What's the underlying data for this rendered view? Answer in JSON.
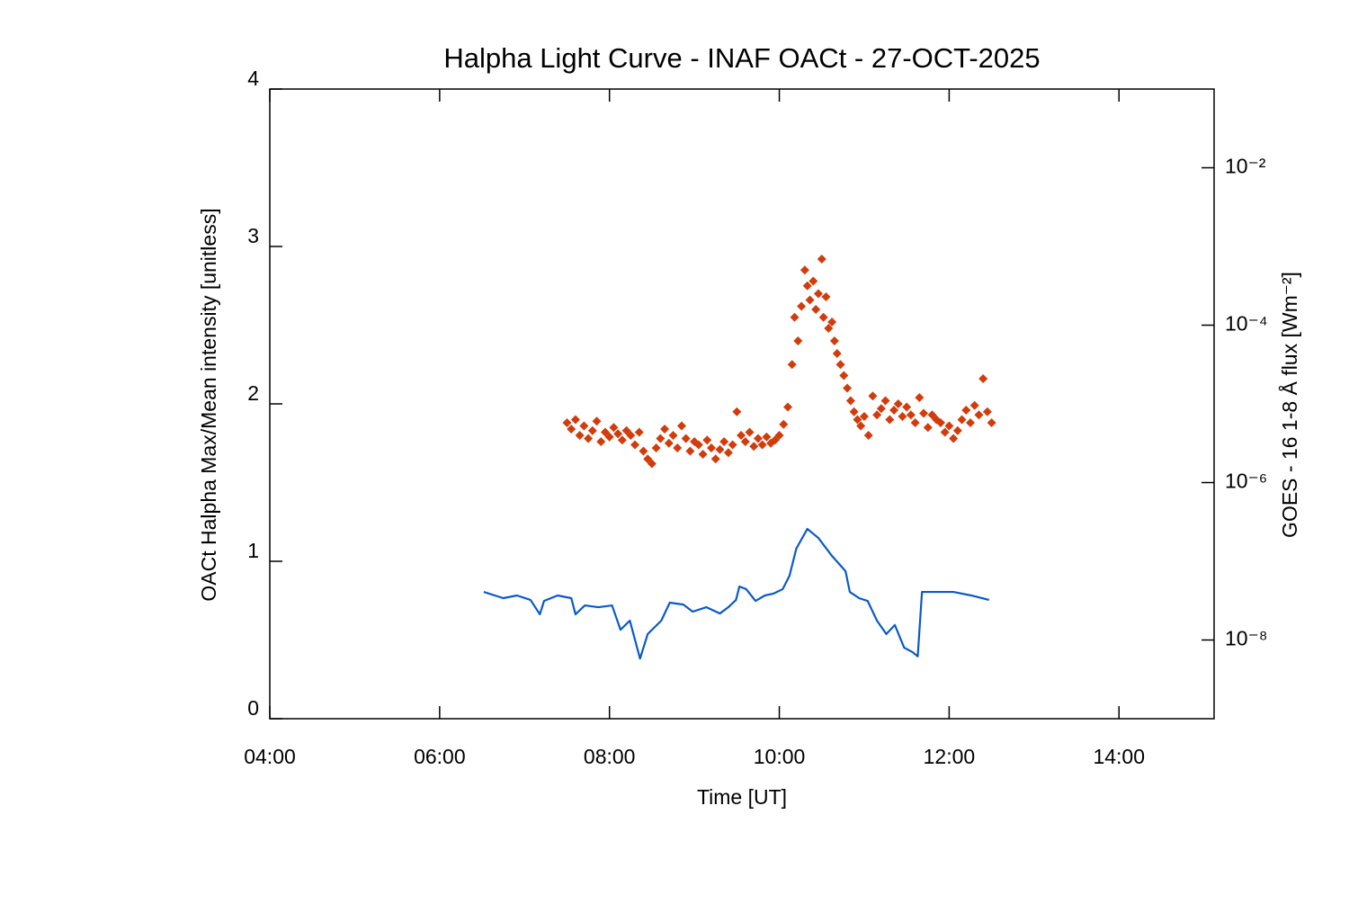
{
  "chart_data": {
    "type": "combo",
    "title": "Halpha Light Curve - INAF OACt - 27-OCT-2025",
    "x_label": "Time [UT]",
    "y_label": "OACt Halpha Max/Mean intensity [unitless]",
    "y2_label": "GOES - 16 1-8 Å flux [Wm⁻²]",
    "xlim": [
      4,
      15.12
    ],
    "xticks": [
      {
        "value": 4,
        "label": "04:00"
      },
      {
        "value": 6,
        "label": "06:00"
      },
      {
        "value": 8,
        "label": "08:00"
      },
      {
        "value": 10,
        "label": "10:00"
      },
      {
        "value": 12,
        "label": "12:00"
      },
      {
        "value": 14,
        "label": "14:00"
      }
    ],
    "ylim": [
      0,
      4
    ],
    "yticks": [
      0,
      1,
      2,
      3,
      4
    ],
    "y2lim": [
      1e-09,
      0.1
    ],
    "y2log": true,
    "y2ticks": [
      {
        "value": 1e-08,
        "label": "10⁻⁸"
      },
      {
        "value": 1e-06,
        "label": "10⁻⁶"
      },
      {
        "value": 0.0001,
        "label": "10⁻⁴"
      },
      {
        "value": 0.01,
        "label": "10⁻²"
      }
    ],
    "series": [
      {
        "type": "scatter",
        "color": "#d23c0c",
        "x": [
          7.5,
          7.55,
          7.6,
          7.65,
          7.7,
          7.75,
          7.8,
          7.85,
          7.9,
          7.95,
          8.0,
          8.05,
          8.1,
          8.15,
          8.2,
          8.25,
          8.3,
          8.35,
          8.4,
          8.45,
          8.5,
          8.55,
          8.6,
          8.65,
          8.7,
          8.75,
          8.8,
          8.85,
          8.9,
          8.95,
          9.0,
          9.05,
          9.1,
          9.15,
          9.2,
          9.25,
          9.3,
          9.35,
          9.4,
          9.45,
          9.5,
          9.55,
          9.6,
          9.65,
          9.7,
          9.75,
          9.8,
          9.85,
          9.9,
          9.95,
          10.0,
          10.05,
          10.1,
          10.15,
          10.18,
          10.22,
          10.26,
          10.3,
          10.33,
          10.36,
          10.4,
          10.43,
          10.46,
          10.5,
          10.52,
          10.55,
          10.58,
          10.62,
          10.65,
          10.68,
          10.72,
          10.76,
          10.8,
          10.84,
          10.88,
          10.92,
          10.96,
          11.0,
          11.05,
          11.1,
          11.15,
          11.2,
          11.25,
          11.3,
          11.35,
          11.4,
          11.45,
          11.5,
          11.55,
          11.6,
          11.65,
          11.7,
          11.75,
          11.8,
          11.85,
          11.9,
          11.95,
          12.0,
          12.05,
          12.1,
          12.15,
          12.2,
          12.25,
          12.3,
          12.35,
          12.4,
          12.45,
          12.5
        ],
        "values": [
          1.88,
          1.84,
          1.9,
          1.8,
          1.86,
          1.78,
          1.83,
          1.89,
          1.76,
          1.82,
          1.79,
          1.85,
          1.81,
          1.77,
          1.83,
          1.8,
          1.74,
          1.82,
          1.7,
          1.65,
          1.62,
          1.72,
          1.78,
          1.84,
          1.75,
          1.8,
          1.72,
          1.86,
          1.78,
          1.7,
          1.76,
          1.74,
          1.68,
          1.77,
          1.72,
          1.65,
          1.71,
          1.76,
          1.69,
          1.74,
          1.95,
          1.8,
          1.76,
          1.82,
          1.73,
          1.78,
          1.74,
          1.79,
          1.75,
          1.77,
          1.8,
          1.87,
          1.98,
          2.25,
          2.55,
          2.4,
          2.62,
          2.85,
          2.75,
          2.66,
          2.78,
          2.6,
          2.7,
          2.92,
          2.55,
          2.68,
          2.48,
          2.52,
          2.4,
          2.32,
          2.25,
          2.18,
          2.1,
          2.02,
          1.95,
          1.9,
          1.86,
          1.92,
          1.8,
          2.05,
          1.93,
          1.97,
          2.02,
          1.9,
          1.96,
          2.0,
          1.92,
          1.98,
          1.93,
          1.88,
          2.04,
          1.94,
          1.85,
          1.93,
          1.9,
          1.88,
          1.82,
          1.86,
          1.78,
          1.83,
          1.9,
          1.96,
          1.88,
          1.99,
          1.93,
          2.16,
          1.95,
          1.88
        ]
      },
      {
        "type": "line",
        "axis": "y2",
        "color": "#0a5ac8",
        "x": [
          6.52,
          6.65,
          6.75,
          6.91,
          7.07,
          7.18,
          7.23,
          7.39,
          7.55,
          7.6,
          7.71,
          7.87,
          8.03,
          8.13,
          8.24,
          8.36,
          8.45,
          8.61,
          8.71,
          8.87,
          8.98,
          9.14,
          9.3,
          9.4,
          9.49,
          9.53,
          9.61,
          9.72,
          9.83,
          9.93,
          10.04,
          10.12,
          10.2,
          10.33,
          10.46,
          10.62,
          10.78,
          10.83,
          10.94,
          11.04,
          11.15,
          11.26,
          11.36,
          11.47,
          11.57,
          11.63,
          11.68,
          11.84,
          12.05,
          12.26,
          12.47
        ],
        "values": [
          4.08e-08,
          3.68e-08,
          3.4e-08,
          3.68e-08,
          3.23e-08,
          2.12e-08,
          3.14e-08,
          3.68e-08,
          3.4e-08,
          2.12e-08,
          2.75e-08,
          2.61e-08,
          2.75e-08,
          1.35e-08,
          1.76e-08,
          5.8e-09,
          1.19e-08,
          1.76e-08,
          2.98e-08,
          2.82e-08,
          2.29e-08,
          2.61e-08,
          2.17e-08,
          2.61e-08,
          3.23e-08,
          4.79e-08,
          4.43e-08,
          3.14e-08,
          3.68e-08,
          3.88e-08,
          4.43e-08,
          6.56e-08,
          1.45e-07,
          2.58e-07,
          1.98e-07,
          1.17e-07,
          7.48e-08,
          4.08e-08,
          3.4e-08,
          3.14e-08,
          1.76e-08,
          1.19e-08,
          1.55e-08,
          8e-09,
          7e-09,
          6.2e-09,
          4.08e-08,
          4.08e-08,
          4.08e-08,
          3.68e-08,
          3.23e-08
        ]
      }
    ]
  }
}
